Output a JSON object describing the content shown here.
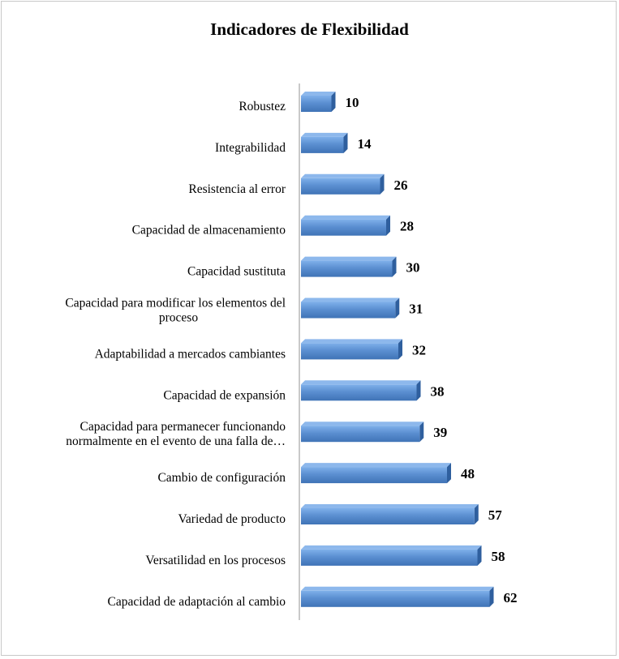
{
  "chart_data": {
    "type": "bar",
    "orientation": "horizontal",
    "title": "Indicadores de Flexibilidad",
    "xlabel": "",
    "ylabel": "",
    "grid": false,
    "legend": "none",
    "xlim": [
      0,
      70
    ],
    "categories": [
      [
        "Robustez"
      ],
      [
        "Integrabilidad"
      ],
      [
        "Resistencia al error"
      ],
      [
        "Capacidad de almacenamiento"
      ],
      [
        "Capacidad sustituta"
      ],
      [
        "Capacidad para modificar los elementos del",
        "proceso"
      ],
      [
        "Adaptabilidad a mercados cambiantes"
      ],
      [
        "Capacidad de expansión"
      ],
      [
        "Capacidad para  permanecer funcionando",
        "normalmente en el evento de una falla de…"
      ],
      [
        "Cambio de configuración"
      ],
      [
        "Variedad de producto"
      ],
      [
        "Versatilidad en los procesos"
      ],
      [
        "Capacidad de adaptación al cambio"
      ]
    ],
    "values": [
      10,
      14,
      26,
      28,
      30,
      31,
      32,
      38,
      39,
      48,
      57,
      58,
      62
    ],
    "bar_color": "#5b8fd1"
  }
}
